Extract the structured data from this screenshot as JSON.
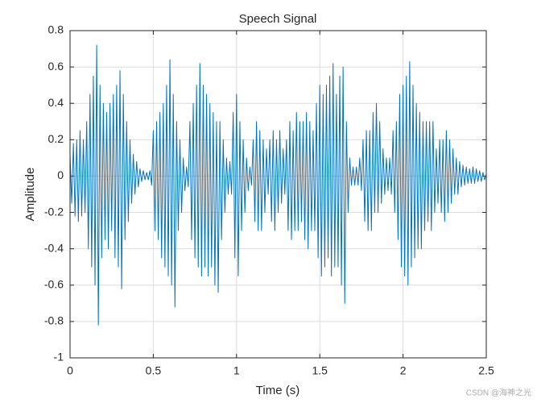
{
  "chart_data": {
    "type": "line",
    "title": "Speech Signal",
    "xlabel": "Time (s)",
    "ylabel": "Amplitude",
    "watermark": "CSDN @海神之光",
    "xlim": [
      0,
      2.5
    ],
    "ylim": [
      -1,
      0.8
    ],
    "xticks": [
      0,
      0.5,
      1,
      1.5,
      2,
      2.5
    ],
    "yticks": [
      -1,
      -0.8,
      -0.6,
      -0.4,
      -0.2,
      0,
      0.2,
      0.4,
      0.6,
      0.8
    ],
    "grid": true,
    "x": [
      0,
      0.01,
      0.02,
      0.03,
      0.04,
      0.05,
      0.06,
      0.07,
      0.08,
      0.09,
      0.1,
      0.11,
      0.12,
      0.13,
      0.14,
      0.15,
      0.16,
      0.17,
      0.18,
      0.19,
      0.2,
      0.21,
      0.22,
      0.23,
      0.24,
      0.25,
      0.26,
      0.27,
      0.28,
      0.29,
      0.3,
      0.31,
      0.32,
      0.33,
      0.34,
      0.35,
      0.36,
      0.37,
      0.38,
      0.39,
      0.4,
      0.41,
      0.42,
      0.43,
      0.44,
      0.45,
      0.46,
      0.47,
      0.48,
      0.49,
      0.5,
      0.51,
      0.52,
      0.53,
      0.54,
      0.55,
      0.56,
      0.57,
      0.58,
      0.59,
      0.6,
      0.61,
      0.62,
      0.63,
      0.64,
      0.65,
      0.66,
      0.67,
      0.68,
      0.69,
      0.7,
      0.71,
      0.72,
      0.73,
      0.74,
      0.75,
      0.76,
      0.77,
      0.78,
      0.79,
      0.8,
      0.81,
      0.82,
      0.83,
      0.84,
      0.85,
      0.86,
      0.87,
      0.88,
      0.89,
      0.9,
      0.91,
      0.92,
      0.93,
      0.94,
      0.95,
      0.96,
      0.97,
      0.98,
      0.99,
      1,
      1.01,
      1.02,
      1.03,
      1.04,
      1.05,
      1.06,
      1.07,
      1.08,
      1.09,
      1.1,
      1.11,
      1.12,
      1.13,
      1.14,
      1.15,
      1.16,
      1.17,
      1.18,
      1.19,
      1.2,
      1.21,
      1.22,
      1.23,
      1.24,
      1.25,
      1.26,
      1.27,
      1.28,
      1.29,
      1.3,
      1.31,
      1.32,
      1.33,
      1.34,
      1.35,
      1.36,
      1.37,
      1.38,
      1.39,
      1.4,
      1.41,
      1.42,
      1.43,
      1.44,
      1.45,
      1.46,
      1.47,
      1.48,
      1.49,
      1.5,
      1.51,
      1.52,
      1.53,
      1.54,
      1.55,
      1.56,
      1.57,
      1.58,
      1.59,
      1.6,
      1.61,
      1.62,
      1.63,
      1.64,
      1.65,
      1.66,
      1.67,
      1.68,
      1.69,
      1.7,
      1.71,
      1.72,
      1.73,
      1.74,
      1.75,
      1.76,
      1.77,
      1.78,
      1.79,
      1.8,
      1.81,
      1.82,
      1.83,
      1.84,
      1.85,
      1.86,
      1.87,
      1.88,
      1.89,
      1.9,
      1.91,
      1.92,
      1.93,
      1.94,
      1.95,
      1.96,
      1.97,
      1.98,
      1.99,
      2,
      2.01,
      2.02,
      2.03,
      2.04,
      2.05,
      2.06,
      2.07,
      2.08,
      2.09,
      2.1,
      2.11,
      2.12,
      2.13,
      2.14,
      2.15,
      2.16,
      2.17,
      2.18,
      2.19,
      2.2,
      2.21,
      2.22,
      2.23,
      2.24,
      2.25,
      2.26,
      2.27,
      2.28,
      2.29,
      2.3,
      2.31,
      2.32,
      2.33,
      2.34,
      2.35,
      2.36,
      2.37,
      2.38,
      2.39,
      2.4,
      2.41,
      2.42,
      2.43,
      2.44,
      2.45,
      2.46,
      2.47,
      2.48,
      2.49,
      2.5
    ],
    "series": [
      {
        "color": "#0072bd",
        "values": [
          0.12,
          -0.15,
          0.18,
          -0.22,
          0.2,
          -0.25,
          0.25,
          -0.22,
          0.2,
          -0.2,
          0.3,
          -0.4,
          0.45,
          -0.5,
          0.55,
          -0.6,
          0.72,
          -0.82,
          0.5,
          -0.45,
          0.4,
          -0.35,
          0.35,
          -0.4,
          0.4,
          -0.3,
          0.45,
          -0.45,
          0.5,
          -0.5,
          0.58,
          -0.62,
          0.45,
          -0.35,
          0.3,
          -0.25,
          0.2,
          -0.15,
          0.12,
          -0.1,
          0.08,
          -0.06,
          0.04,
          -0.03,
          0.03,
          -0.02,
          0.02,
          -0.02,
          0.03,
          -0.05,
          0.25,
          -0.3,
          0.3,
          -0.35,
          0.35,
          -0.45,
          0.4,
          -0.5,
          0.5,
          -0.55,
          0.64,
          -0.6,
          0.45,
          -0.72,
          0.3,
          -0.3,
          0.2,
          -0.2,
          0.1,
          -0.08,
          0.05,
          -0.06,
          0.3,
          -0.35,
          0.4,
          -0.45,
          0.5,
          -0.5,
          0.62,
          -0.55,
          0.5,
          -0.5,
          0.45,
          -0.55,
          0.4,
          -0.5,
          0.35,
          -0.6,
          0.3,
          -0.64,
          0.3,
          -0.35,
          0.2,
          -0.2,
          0.1,
          -0.1,
          0.08,
          -0.1,
          0.35,
          -0.45,
          0.45,
          -0.55,
          0.3,
          -0.3,
          0.2,
          -0.2,
          0.1,
          -0.08,
          0.05,
          -0.05,
          0.2,
          -0.25,
          0.3,
          -0.3,
          0.25,
          -0.3,
          0.2,
          -0.2,
          0.15,
          -0.1,
          0.2,
          -0.25,
          0.25,
          -0.3,
          0.2,
          -0.2,
          0.25,
          -0.15,
          0.15,
          -0.1,
          0.2,
          -0.3,
          0.3,
          -0.35,
          0.25,
          -0.3,
          0.35,
          -0.3,
          0.3,
          -0.25,
          0.3,
          -0.35,
          0.35,
          -0.4,
          0.3,
          -0.3,
          0.25,
          -0.3,
          0.4,
          -0.45,
          0.5,
          -0.55,
          0.45,
          -0.5,
          0.5,
          -0.45,
          0.55,
          -0.55,
          0.62,
          -0.5,
          0.45,
          -0.5,
          0.55,
          -0.6,
          0.6,
          -0.7,
          0.3,
          -0.2,
          0.1,
          -0.05,
          0.05,
          -0.05,
          0.05,
          -0.05,
          0.1,
          -0.08,
          0.2,
          -0.25,
          0.25,
          -0.3,
          0.25,
          -0.3,
          0.35,
          -0.2,
          0.4,
          -0.2,
          0.3,
          -0.15,
          0.15,
          -0.1,
          0.1,
          -0.08,
          0.1,
          -0.1,
          0.25,
          -0.2,
          0.3,
          -0.35,
          0.45,
          -0.5,
          0.5,
          -0.55,
          0.55,
          -0.6,
          0.63,
          -0.5,
          0.5,
          -0.45,
          0.4,
          -0.4,
          0.35,
          -0.4,
          0.3,
          -0.3,
          0.3,
          -0.25,
          0.3,
          -0.3,
          0.3,
          -0.2,
          0.15,
          -0.15,
          0.2,
          -0.2,
          0.2,
          -0.25,
          0.25,
          -0.2,
          0.2,
          -0.15,
          0.15,
          -0.1,
          0.1,
          -0.1,
          0.08,
          -0.06,
          0.06,
          -0.05,
          0.05,
          -0.04,
          0.04,
          -0.04,
          0.05,
          -0.04,
          0.04,
          -0.03,
          0.03,
          -0.03,
          0.02,
          -0.02,
          0.01
        ]
      }
    ]
  }
}
